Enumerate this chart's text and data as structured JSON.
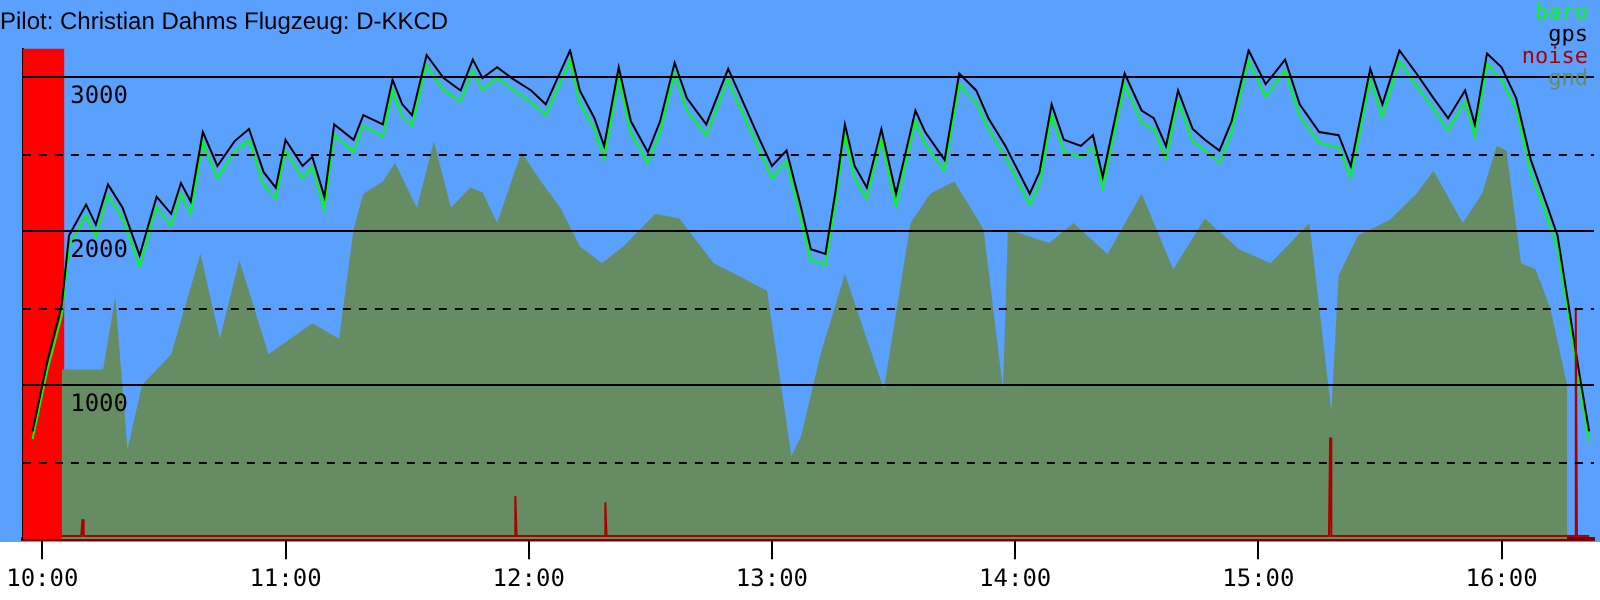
{
  "chart_data": {
    "type": "line",
    "title": "Pilot: Christian Dahms Flugzeug: D-KKCD",
    "x": [
      9.96,
      10.02,
      10.08,
      10.11,
      10.18,
      10.22,
      10.27,
      10.33,
      10.4,
      10.47,
      10.53,
      10.57,
      10.61,
      10.66,
      10.72,
      10.79,
      10.85,
      10.91,
      10.96,
      11.0,
      11.07,
      11.11,
      11.16,
      11.2,
      11.28,
      11.32,
      11.4,
      11.44,
      11.48,
      11.52,
      11.58,
      11.65,
      11.72,
      11.77,
      11.81,
      11.87,
      11.93,
      12.01,
      12.07,
      12.17,
      12.21,
      12.27,
      12.31,
      12.37,
      12.42,
      12.49,
      12.54,
      12.6,
      12.65,
      12.73,
      12.82,
      12.86,
      12.95,
      13.0,
      13.06,
      13.12,
      13.16,
      13.22,
      13.26,
      13.3,
      13.34,
      13.39,
      13.45,
      13.51,
      13.59,
      13.63,
      13.71,
      13.77,
      13.84,
      13.89,
      13.96,
      14.06,
      14.1,
      14.15,
      14.2,
      14.27,
      14.32,
      14.36,
      14.45,
      14.52,
      14.57,
      14.62,
      14.67,
      14.73,
      14.78,
      14.84,
      14.89,
      14.96,
      15.03,
      15.11,
      15.17,
      15.25,
      15.33,
      15.38,
      15.46,
      15.51,
      15.58,
      15.65,
      15.72,
      15.78,
      15.85,
      15.89,
      15.94,
      16.0,
      16.06,
      16.12,
      16.19,
      16.23,
      16.27,
      16.32,
      16.36
    ],
    "series": [
      {
        "name": "baro",
        "color": "#00ff00",
        "values": [
          650,
          1090,
          1450,
          1900,
          2100,
          1960,
          2230,
          2080,
          1770,
          2150,
          2030,
          2240,
          2110,
          2570,
          2340,
          2510,
          2590,
          2300,
          2210,
          2520,
          2340,
          2410,
          2140,
          2620,
          2510,
          2680,
          2610,
          2910,
          2740,
          2680,
          3070,
          2910,
          2840,
          3040,
          2910,
          2990,
          2920,
          2830,
          2750,
          3100,
          2830,
          2660,
          2470,
          2990,
          2630,
          2440,
          2640,
          3020,
          2780,
          2620,
          2980,
          2830,
          2520,
          2340,
          2450,
          2070,
          1810,
          1780,
          2160,
          2620,
          2340,
          2210,
          2590,
          2160,
          2710,
          2560,
          2390,
          2950,
          2830,
          2660,
          2480,
          2170,
          2300,
          2750,
          2510,
          2480,
          2540,
          2280,
          2950,
          2700,
          2660,
          2470,
          2840,
          2580,
          2520,
          2440,
          2640,
          3100,
          2870,
          3040,
          2740,
          2570,
          2540,
          2350,
          2980,
          2740,
          3100,
          2940,
          2790,
          2650,
          2840,
          2610,
          3080,
          2980,
          2790,
          2380,
          2080,
          1890,
          1500,
          1000,
          640
        ]
      },
      {
        "name": "gps",
        "color": "#000000",
        "values": [
          700,
          1150,
          1520,
          1970,
          2170,
          2040,
          2300,
          2150,
          1840,
          2220,
          2110,
          2310,
          2190,
          2640,
          2420,
          2580,
          2660,
          2380,
          2280,
          2590,
          2420,
          2480,
          2220,
          2690,
          2590,
          2750,
          2690,
          2980,
          2820,
          2750,
          3140,
          2990,
          2910,
          3110,
          2990,
          3060,
          2990,
          2910,
          2820,
          3170,
          2910,
          2730,
          2550,
          3060,
          2710,
          2510,
          2710,
          3090,
          2860,
          2690,
          3050,
          2910,
          2590,
          2420,
          2520,
          2150,
          1880,
          1850,
          2240,
          2690,
          2420,
          2280,
          2660,
          2240,
          2780,
          2640,
          2460,
          3020,
          2910,
          2730,
          2550,
          2240,
          2380,
          2820,
          2590,
          2550,
          2620,
          2350,
          3020,
          2780,
          2730,
          2550,
          2910,
          2660,
          2590,
          2520,
          2710,
          3170,
          2950,
          3110,
          2820,
          2640,
          2620,
          2420,
          3050,
          2820,
          3170,
          3020,
          2860,
          2730,
          2910,
          2690,
          3150,
          3060,
          2860,
          2460,
          2150,
          1970,
          1570,
          1070,
          700
        ]
      },
      {
        "name": "noise",
        "color": "#aa0000",
        "x": [
          10.08,
          10.16,
          10.165,
          10.17,
          11.94,
          11.945,
          11.95,
          12.31,
          12.315,
          12.32,
          15.29,
          15.295,
          15.3,
          16.3,
          16.305,
          16.31,
          16.36
        ],
        "values": [
          20,
          20,
          130,
          20,
          20,
          280,
          20,
          20,
          240,
          20,
          20,
          660,
          20,
          20,
          1500,
          20,
          20
        ]
      },
      {
        "name": "gnd",
        "type": "area",
        "color": "#668c64",
        "x": [
          10.08,
          10.25,
          10.3,
          10.35,
          10.41,
          10.53,
          10.65,
          10.73,
          10.81,
          10.93,
          11.11,
          11.22,
          11.28,
          11.32,
          11.4,
          11.45,
          11.54,
          11.61,
          11.68,
          11.76,
          11.81,
          11.87,
          11.97,
          12.05,
          12.13,
          12.21,
          12.3,
          12.39,
          12.52,
          12.62,
          12.76,
          12.86,
          12.98,
          13.08,
          13.12,
          13.2,
          13.3,
          13.46,
          13.57,
          13.65,
          13.75,
          13.87,
          13.95,
          13.97,
          14.14,
          14.24,
          14.38,
          14.52,
          14.65,
          14.78,
          14.92,
          15.05,
          15.21,
          15.3,
          15.33,
          15.41,
          15.54,
          15.65,
          15.72,
          15.84,
          15.92,
          15.98,
          16.02,
          16.08,
          16.14,
          16.2,
          16.27
        ],
        "values": [
          1100,
          1100,
          1570,
          580,
          1000,
          1200,
          1850,
          1300,
          1810,
          1200,
          1400,
          1300,
          2010,
          2240,
          2320,
          2440,
          2150,
          2580,
          2150,
          2280,
          2250,
          2050,
          2510,
          2320,
          2150,
          1900,
          1790,
          1900,
          2110,
          2080,
          1790,
          1710,
          1610,
          540,
          670,
          1200,
          1720,
          970,
          2050,
          2240,
          2320,
          2010,
          970,
          2010,
          1920,
          2050,
          1850,
          2240,
          1750,
          2080,
          1880,
          1790,
          2050,
          830,
          1710,
          1970,
          2070,
          2240,
          2390,
          2050,
          2240,
          2550,
          2520,
          1790,
          1750,
          1500,
          1000
        ]
      }
    ],
    "xlim": [
      9.92,
      16.38
    ],
    "xticks": [
      {
        "value": 10,
        "label": "10:00"
      },
      {
        "value": 11,
        "label": "11:00"
      },
      {
        "value": 12,
        "label": "12:00"
      },
      {
        "value": 13,
        "label": "13:00"
      },
      {
        "value": 14,
        "label": "14:00"
      },
      {
        "value": 15,
        "label": "15:00"
      },
      {
        "value": 16,
        "label": "16:00"
      }
    ],
    "ylim": [
      0,
      3180
    ],
    "yticks": [
      {
        "value": 500,
        "label": null
      },
      1000,
      {
        "value": 1500,
        "label": null
      },
      2000,
      {
        "value": 2500,
        "label": null
      },
      3000
    ],
    "bands": [
      {
        "axis": "x",
        "from": 9.92,
        "to": 10.09,
        "color": "#ff0000"
      }
    ],
    "grid": "y",
    "legend": "top right",
    "marker": "none",
    "line_style": "solid"
  }
}
